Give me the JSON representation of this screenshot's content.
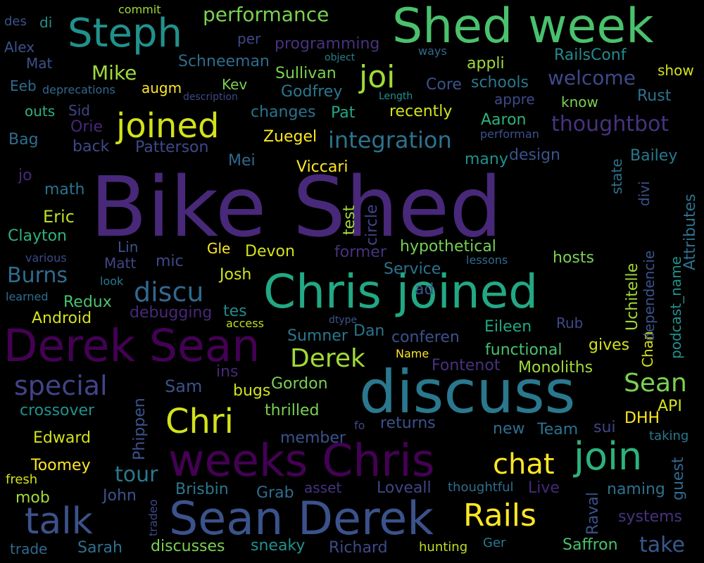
{
  "words": [
    {
      "text": "Bike Shed",
      "color": "#482878"
    },
    {
      "text": "Shed week",
      "color": "#4ac16d"
    },
    {
      "text": "discuss",
      "color": "#2a788e"
    },
    {
      "text": "Chris joined",
      "color": "#22a884"
    },
    {
      "text": "Derek Sean",
      "color": "#440154"
    },
    {
      "text": "weeks Chris",
      "color": "#440154"
    },
    {
      "text": "Sean Derek",
      "color": "#3b528b"
    },
    {
      "text": "Steph",
      "color": "#21918c"
    },
    {
      "text": "joined",
      "color": "#d2e21b"
    },
    {
      "text": "talk",
      "color": "#3b528b"
    },
    {
      "text": "Chri",
      "color": "#d2e21b"
    },
    {
      "text": "join",
      "color": "#2db27d"
    },
    {
      "text": "Rails",
      "color": "#fde725"
    },
    {
      "text": "chat",
      "color": "#fde725"
    },
    {
      "text": "special",
      "color": "#414487"
    },
    {
      "text": "discu",
      "color": "#31688e"
    },
    {
      "text": "Derek",
      "color": "#a0da39"
    },
    {
      "text": "Sean",
      "color": "#7ad151"
    },
    {
      "text": "joi",
      "color": "#a0da39"
    },
    {
      "text": "performance",
      "color": "#7ad151"
    },
    {
      "text": "integration",
      "color": "#2c728e"
    },
    {
      "text": "thoughtbot",
      "color": "#46337e"
    },
    {
      "text": "welcome",
      "color": "#3e4989"
    },
    {
      "text": "Mike",
      "color": "#a0da39"
    },
    {
      "text": "tour",
      "color": "#2a788e"
    },
    {
      "text": "take",
      "color": "#38598c"
    },
    {
      "text": "Burns",
      "color": "#2f6c8e"
    },
    {
      "text": "hypothetical",
      "color": "#75d054"
    },
    {
      "text": "Schneeman",
      "color": "#2f6c8e"
    },
    {
      "text": "programming",
      "color": "#46337e"
    },
    {
      "text": "commit",
      "color": "#a0da39"
    },
    {
      "text": "des",
      "color": "#3b528b"
    },
    {
      "text": "di",
      "color": "#21918c"
    },
    {
      "text": "per",
      "color": "#3e4989"
    },
    {
      "text": "object",
      "color": "#287d8e"
    },
    {
      "text": "ways",
      "color": "#31688e"
    },
    {
      "text": "RailsConf",
      "color": "#238a8d"
    },
    {
      "text": "Alex",
      "color": "#3b528b"
    },
    {
      "text": "Mat",
      "color": "#3b528b"
    },
    {
      "text": "Eeb",
      "color": "#2f6c8e"
    },
    {
      "text": "deprecations",
      "color": "#31688e"
    },
    {
      "text": "augm",
      "color": "#fde725"
    },
    {
      "text": "description",
      "color": "#3e4989"
    },
    {
      "text": "Kev",
      "color": "#7ad151"
    },
    {
      "text": "Sullivan",
      "color": "#7ad151"
    },
    {
      "text": "Godfrey",
      "color": "#2a788e"
    },
    {
      "text": "Length",
      "color": "#21918c"
    },
    {
      "text": "Core",
      "color": "#3b528b"
    },
    {
      "text": "schools",
      "color": "#2a788e"
    },
    {
      "text": "appli",
      "color": "#a0da39"
    },
    {
      "text": "show",
      "color": "#d2e21b"
    },
    {
      "text": "Rust",
      "color": "#2c728e"
    },
    {
      "text": "appre",
      "color": "#3e4989"
    },
    {
      "text": "know",
      "color": "#7ad151"
    },
    {
      "text": "outs",
      "color": "#2db27d"
    },
    {
      "text": "Sid",
      "color": "#414487"
    },
    {
      "text": "changes",
      "color": "#2c728e"
    },
    {
      "text": "Pat",
      "color": "#22a884"
    },
    {
      "text": "recently",
      "color": "#d2e21b"
    },
    {
      "text": "Aaron",
      "color": "#2db27d"
    },
    {
      "text": "performan",
      "color": "#3b528b"
    },
    {
      "text": "Orie",
      "color": "#482878"
    },
    {
      "text": "Bag",
      "color": "#2f6c8e"
    },
    {
      "text": "back",
      "color": "#3e4989"
    },
    {
      "text": "Patterson",
      "color": "#3e4989"
    },
    {
      "text": "Zuegel",
      "color": "#fde725"
    },
    {
      "text": "design",
      "color": "#3b528b"
    },
    {
      "text": "Bailey",
      "color": "#2a788e"
    },
    {
      "text": "state",
      "color": "#2c728e"
    },
    {
      "text": "Mei",
      "color": "#31688e"
    },
    {
      "text": "Viccari",
      "color": "#fde725"
    },
    {
      "text": "many",
      "color": "#21918c"
    },
    {
      "text": "jo",
      "color": "#482878"
    },
    {
      "text": "math",
      "color": "#2c728e"
    },
    {
      "text": "Eric",
      "color": "#bddf26"
    },
    {
      "text": "Clayton",
      "color": "#2db27d"
    },
    {
      "text": "various",
      "color": "#3e4989"
    },
    {
      "text": "Lin",
      "color": "#3b528b"
    },
    {
      "text": "Matt",
      "color": "#414487"
    },
    {
      "text": "mic",
      "color": "#3e4989"
    },
    {
      "text": "Gle",
      "color": "#fde725"
    },
    {
      "text": "Devon",
      "color": "#d2e21b"
    },
    {
      "text": "former",
      "color": "#46337e"
    },
    {
      "text": "test",
      "color": "#a0da39"
    },
    {
      "text": "circle",
      "color": "#414487"
    },
    {
      "text": "lessons",
      "color": "#2f6c8e"
    },
    {
      "text": "hosts",
      "color": "#7ad151"
    },
    {
      "text": "Service",
      "color": "#2c728e"
    },
    {
      "text": "learned",
      "color": "#2f6c8e"
    },
    {
      "text": "look",
      "color": "#2a788e"
    },
    {
      "text": "Redux",
      "color": "#4ac16d"
    },
    {
      "text": "Android",
      "color": "#d2e21b"
    },
    {
      "text": "debugging",
      "color": "#482878"
    },
    {
      "text": "tes",
      "color": "#238a8d"
    },
    {
      "text": "Josh",
      "color": "#d2e21b"
    },
    {
      "text": "access",
      "color": "#bddf26"
    },
    {
      "text": "ad",
      "color": "#3b528b"
    },
    {
      "text": "dtype",
      "color": "#3b528b"
    },
    {
      "text": "Dan",
      "color": "#2c728e"
    },
    {
      "text": "Sumner",
      "color": "#2a788e"
    },
    {
      "text": "conferen",
      "color": "#3b528b"
    },
    {
      "text": "Eileen",
      "color": "#22a884"
    },
    {
      "text": "Rub",
      "color": "#3e4989"
    },
    {
      "text": "Name",
      "color": "#fde725"
    },
    {
      "text": "functional",
      "color": "#4ac16d"
    },
    {
      "text": "gives",
      "color": "#d2e21b"
    },
    {
      "text": "Chan",
      "color": "#d2e21b"
    },
    {
      "text": "Uchitelle",
      "color": "#a0da39"
    },
    {
      "text": "dependencie",
      "color": "#3b528b"
    },
    {
      "text": "podcast_name",
      "color": "#21918c"
    },
    {
      "text": "Attributes",
      "color": "#2c728e"
    },
    {
      "text": "divi",
      "color": "#3b528b"
    },
    {
      "text": "ins",
      "color": "#482878"
    },
    {
      "text": "bugs",
      "color": "#d2e21b"
    },
    {
      "text": "Fontenot",
      "color": "#46337e"
    },
    {
      "text": "Monoliths",
      "color": "#a0da39"
    },
    {
      "text": "Gordon",
      "color": "#7ad151"
    },
    {
      "text": "Sam",
      "color": "#3b528b"
    },
    {
      "text": "crossover",
      "color": "#21918c"
    },
    {
      "text": "thrilled",
      "color": "#7ad151"
    },
    {
      "text": "returns",
      "color": "#3b528b"
    },
    {
      "text": "API",
      "color": "#d2e21b"
    },
    {
      "text": "DHH",
      "color": "#fde725"
    },
    {
      "text": "sui",
      "color": "#414487"
    },
    {
      "text": "new",
      "color": "#2f6c8e"
    },
    {
      "text": "Team",
      "color": "#2c728e"
    },
    {
      "text": "taking",
      "color": "#2a788e"
    },
    {
      "text": "Phippen",
      "color": "#3b528b"
    },
    {
      "text": "Edward",
      "color": "#d2e21b"
    },
    {
      "text": "member",
      "color": "#3b528b"
    },
    {
      "text": "fo",
      "color": "#3e4989"
    },
    {
      "text": "guest",
      "color": "#31688e"
    },
    {
      "text": "Toomey",
      "color": "#fde725"
    },
    {
      "text": "fresh",
      "color": "#d2e21b"
    },
    {
      "text": "mob",
      "color": "#a0da39"
    },
    {
      "text": "John",
      "color": "#3b528b"
    },
    {
      "text": "Brisbin",
      "color": "#2a788e"
    },
    {
      "text": "Grab",
      "color": "#2f6c8e"
    },
    {
      "text": "asset",
      "color": "#46337e"
    },
    {
      "text": "Loveall",
      "color": "#414487"
    },
    {
      "text": "thoughtful",
      "color": "#2f6c8e"
    },
    {
      "text": "Live",
      "color": "#482878"
    },
    {
      "text": "naming",
      "color": "#2c728e"
    },
    {
      "text": "Raval",
      "color": "#3b528b"
    },
    {
      "text": "systems",
      "color": "#46337e"
    },
    {
      "text": "tradeo",
      "color": "#3e4989"
    },
    {
      "text": "trade",
      "color": "#31688e"
    },
    {
      "text": "Sarah",
      "color": "#2c728e"
    },
    {
      "text": "discusses",
      "color": "#7ad151"
    },
    {
      "text": "sneaky",
      "color": "#21918c"
    },
    {
      "text": "Richard",
      "color": "#3e4989"
    },
    {
      "text": "hunting",
      "color": "#bddf26"
    },
    {
      "text": "Ger",
      "color": "#2a788e"
    },
    {
      "text": "Saffron",
      "color": "#4ac16d"
    }
  ]
}
